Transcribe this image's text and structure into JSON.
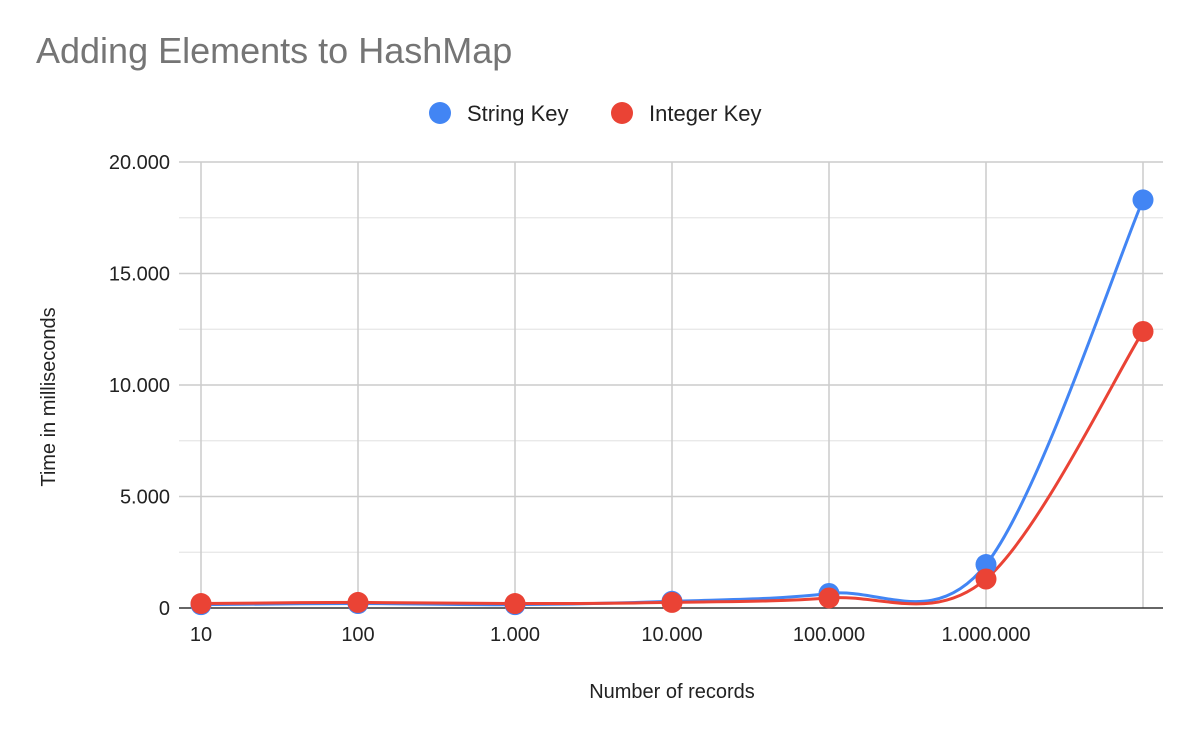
{
  "chart_data": {
    "type": "line",
    "title": "Adding Elements to HashMap",
    "xlabel": "Number of records",
    "ylabel": "Time in milliseconds",
    "categories": [
      "10",
      "100",
      "1.000",
      "10.000",
      "100.000",
      "1.000.000",
      ""
    ],
    "ylim": [
      0,
      20000
    ],
    "yticks": [
      0,
      5000,
      10000,
      15000,
      20000
    ],
    "ytick_labels": [
      "0",
      "5.000",
      "10.000",
      "15.000",
      "20.000"
    ],
    "grid": true,
    "legend_position": "top-center",
    "series": [
      {
        "name": "String Key",
        "color": "#4285F4",
        "values": [
          150,
          200,
          150,
          300,
          650,
          1950,
          18300
        ]
      },
      {
        "name": "Integer Key",
        "color": "#EA4335",
        "values": [
          200,
          250,
          200,
          250,
          450,
          1300,
          12400
        ]
      }
    ]
  }
}
